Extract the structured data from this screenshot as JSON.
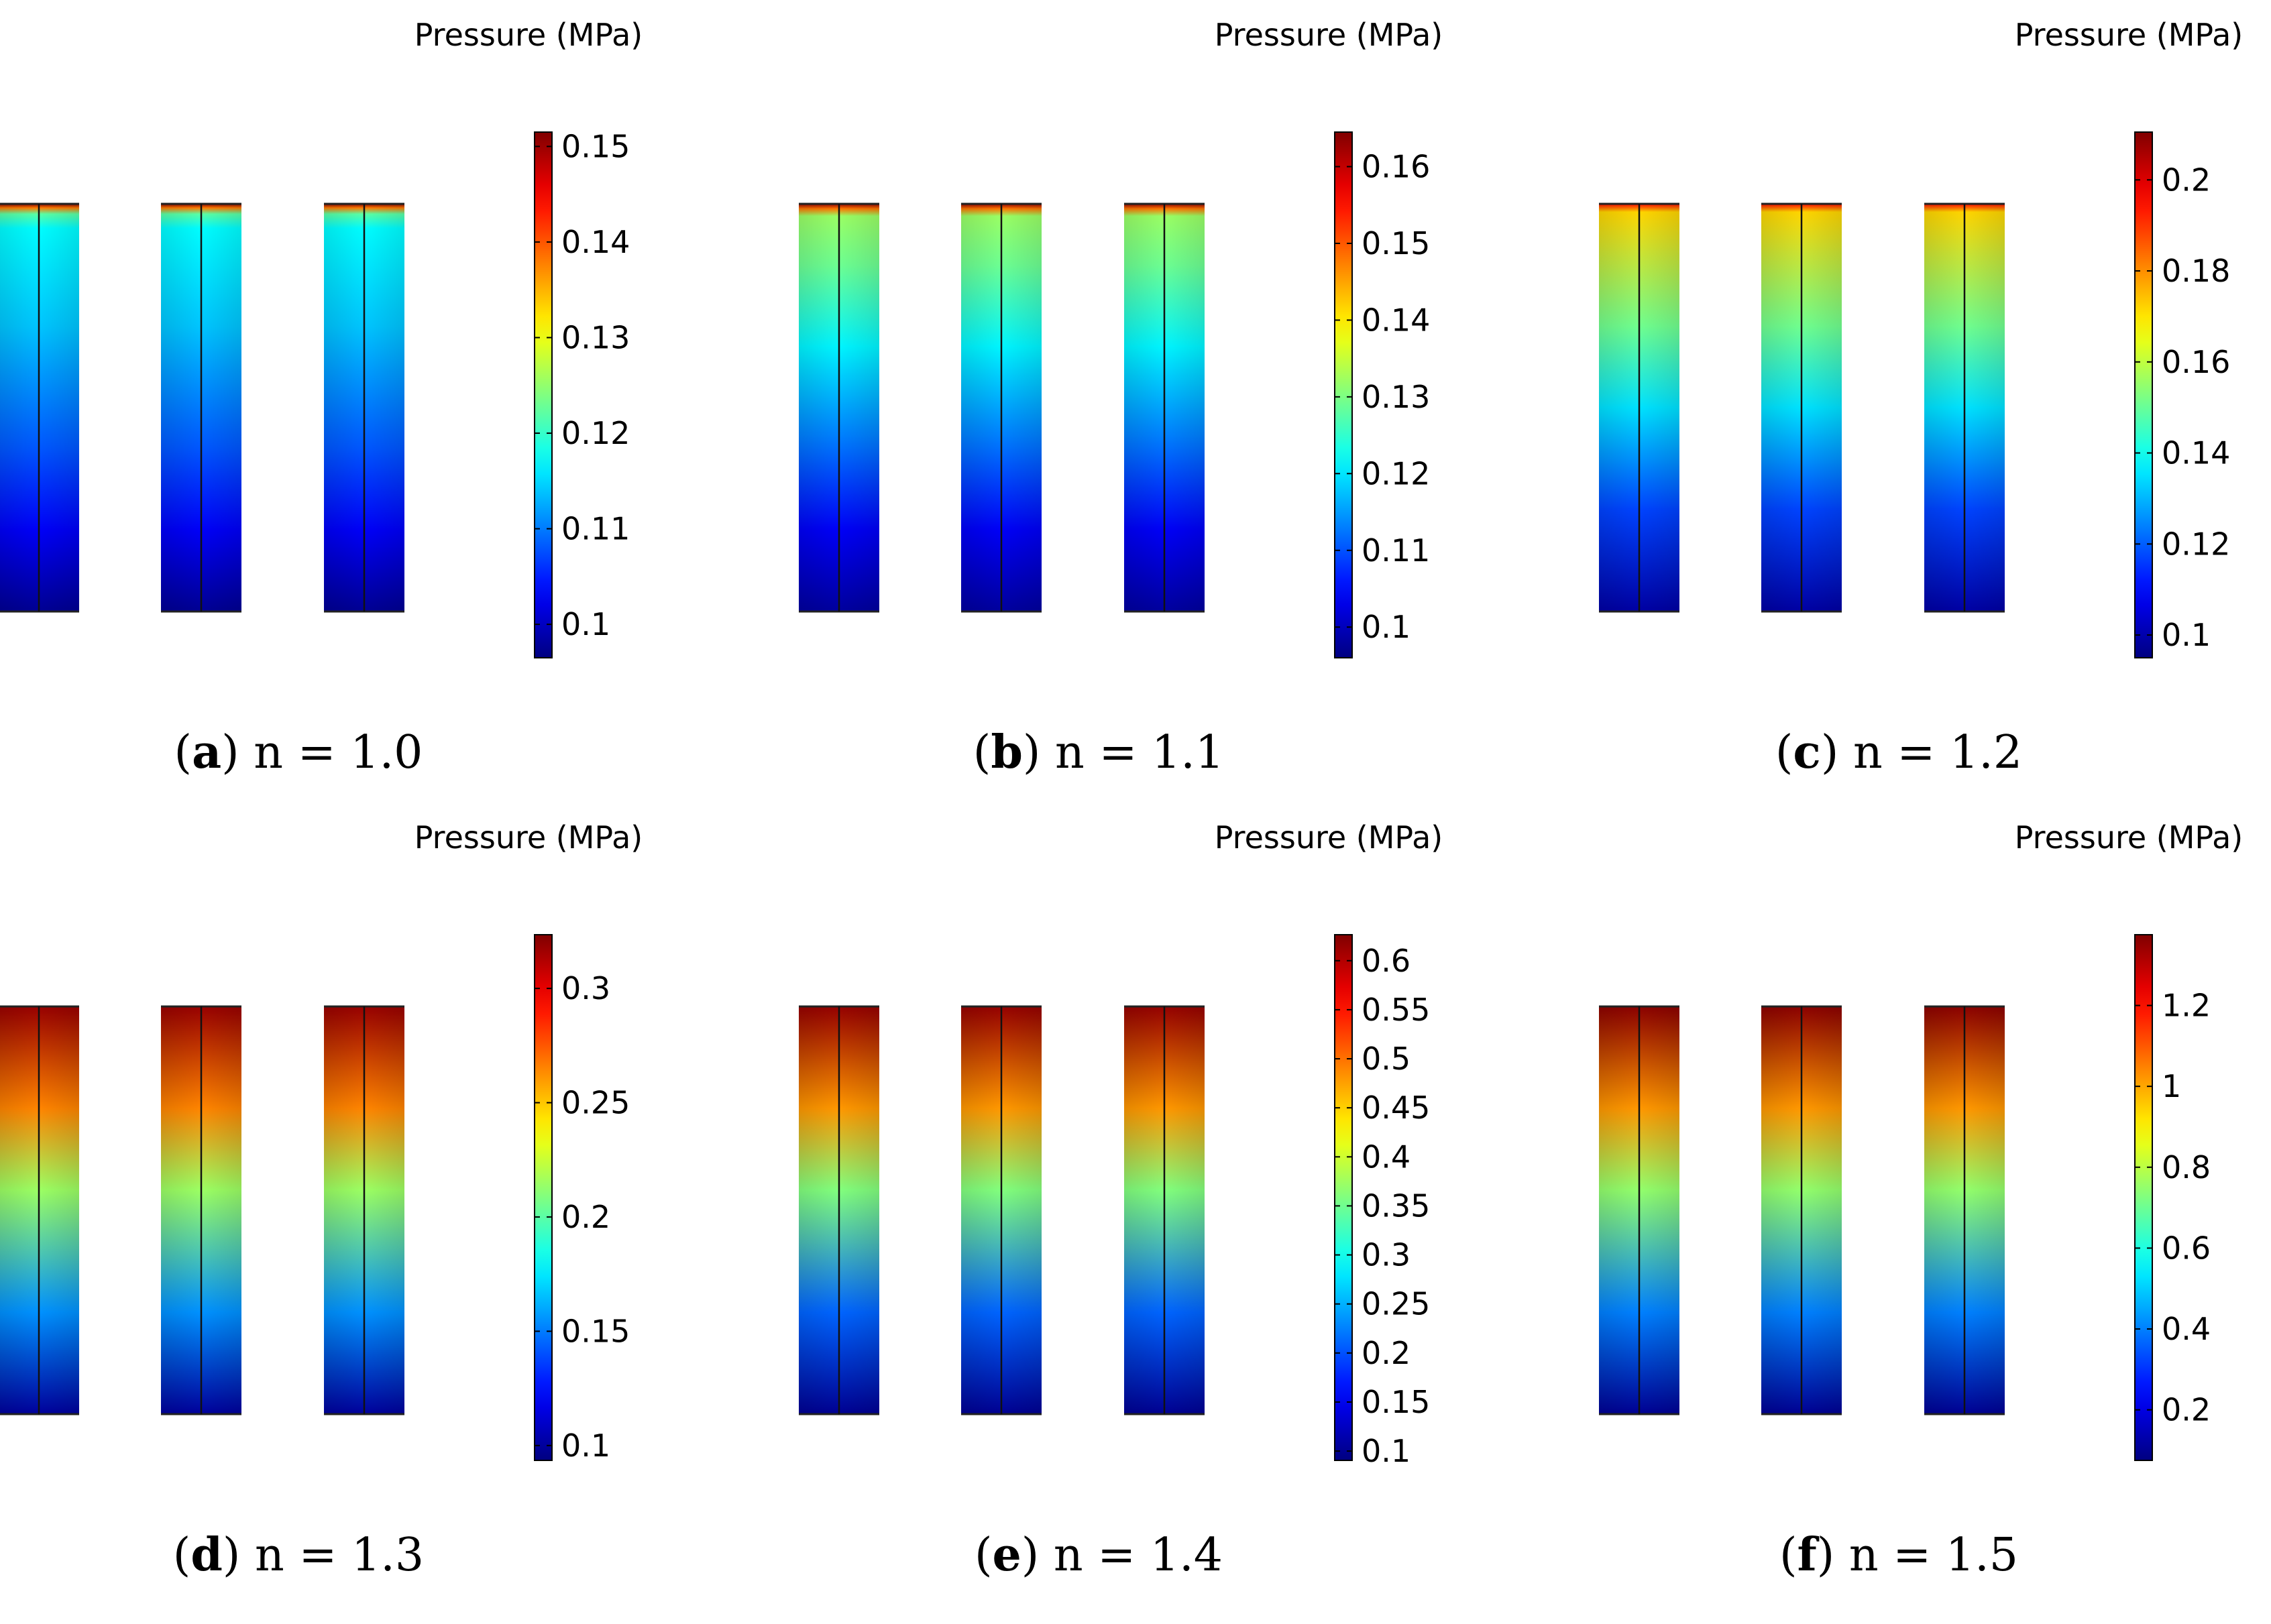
{
  "figure": {
    "colorbar_title": "Pressure (MPa)",
    "panels": [
      {
        "letter": "a",
        "n_label": "n = 1.0",
        "scale_min": 0.0965,
        "scale_max": 0.1515,
        "ticks": [
          "0.1",
          "0.11",
          "0.12",
          "0.13",
          "0.14",
          "0.15"
        ],
        "profile": [
          {
            "t": 0.0,
            "v": 0.151
          },
          {
            "t": 0.01,
            "v": 0.138
          },
          {
            "t": 0.025,
            "v": 0.122
          },
          {
            "t": 0.06,
            "v": 0.117
          },
          {
            "t": 0.3,
            "v": 0.114
          },
          {
            "t": 0.6,
            "v": 0.108
          },
          {
            "t": 0.8,
            "v": 0.103
          },
          {
            "t": 1.0,
            "v": 0.0975
          }
        ]
      },
      {
        "letter": "b",
        "n_label": "n = 1.1",
        "scale_min": 0.096,
        "scale_max": 0.1645,
        "ticks": [
          "0.1",
          "0.11",
          "0.12",
          "0.13",
          "0.14",
          "0.15",
          "0.16"
        ],
        "profile": [
          {
            "t": 0.0,
            "v": 0.163
          },
          {
            "t": 0.012,
            "v": 0.148
          },
          {
            "t": 0.03,
            "v": 0.132
          },
          {
            "t": 0.15,
            "v": 0.129
          },
          {
            "t": 0.35,
            "v": 0.121
          },
          {
            "t": 0.6,
            "v": 0.112
          },
          {
            "t": 0.8,
            "v": 0.104
          },
          {
            "t": 1.0,
            "v": 0.098
          }
        ]
      },
      {
        "letter": "c",
        "n_label": "n = 1.2",
        "scale_min": 0.095,
        "scale_max": 0.2105,
        "ticks": [
          "0.1",
          "0.12",
          "0.14",
          "0.16",
          "0.18",
          "0.2"
        ],
        "profile": [
          {
            "t": 0.0,
            "v": 0.195
          },
          {
            "t": 0.02,
            "v": 0.172
          },
          {
            "t": 0.3,
            "v": 0.151
          },
          {
            "t": 0.5,
            "v": 0.135
          },
          {
            "t": 0.75,
            "v": 0.117
          },
          {
            "t": 1.0,
            "v": 0.099
          }
        ]
      },
      {
        "letter": "d",
        "n_label": "n = 1.3",
        "scale_min": 0.0935,
        "scale_max": 0.3235,
        "ticks": [
          "0.1",
          "0.15",
          "0.2",
          "0.25",
          "0.3"
        ],
        "profile": [
          {
            "t": 0.0,
            "v": 0.318
          },
          {
            "t": 0.25,
            "v": 0.265
          },
          {
            "t": 0.45,
            "v": 0.215
          },
          {
            "t": 0.75,
            "v": 0.155
          },
          {
            "t": 1.0,
            "v": 0.1
          }
        ]
      },
      {
        "letter": "e",
        "n_label": "n = 1.4",
        "scale_min": 0.0905,
        "scale_max": 0.6265,
        "ticks": [
          "0.1",
          "0.15",
          "0.2",
          "0.25",
          "0.3",
          "0.35",
          "0.4",
          "0.45",
          "0.5",
          "0.55",
          "0.6"
        ],
        "profile": [
          {
            "t": 0.0,
            "v": 0.615
          },
          {
            "t": 0.25,
            "v": 0.48
          },
          {
            "t": 0.45,
            "v": 0.36
          },
          {
            "t": 0.75,
            "v": 0.21
          },
          {
            "t": 1.0,
            "v": 0.1
          }
        ]
      },
      {
        "letter": "f",
        "n_label": "n = 1.5",
        "scale_min": 0.075,
        "scale_max": 1.375,
        "ticks": [
          "0.2",
          "0.4",
          "0.6",
          "0.8",
          "1",
          "1.2"
        ],
        "profile": [
          {
            "t": 0.0,
            "v": 1.36
          },
          {
            "t": 0.25,
            "v": 1.02
          },
          {
            "t": 0.45,
            "v": 0.75
          },
          {
            "t": 0.75,
            "v": 0.4
          },
          {
            "t": 1.0,
            "v": 0.1
          }
        ]
      }
    ]
  }
}
